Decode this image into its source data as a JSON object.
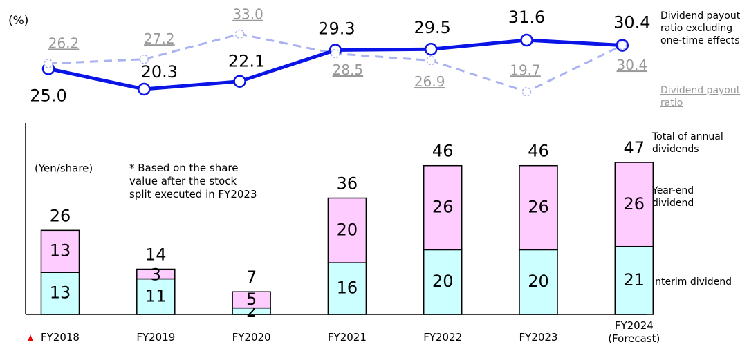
{
  "chart_data": {
    "type": "bar-line-combo",
    "line_unit": "(%)",
    "bar_unit": "(Yen/share)",
    "note": "* Based on the share value after the stock split executed in FY2023",
    "categories": [
      "FY2018",
      "FY2019",
      "FY2020",
      "FY2021",
      "FY2022",
      "FY2023",
      "FY2024 (Forecast)"
    ],
    "lines": [
      {
        "name": "Dividend payout ratio excluding one-time effects",
        "color": "#0a14e6",
        "dashed": false,
        "values": [
          25.0,
          20.3,
          22.1,
          29.3,
          29.5,
          31.6,
          30.4
        ],
        "value_labels": [
          "25.0",
          "20.3",
          "22.1",
          "29.3",
          "29.5",
          "31.6",
          "30.4"
        ]
      },
      {
        "name": "Dividend payout ratio",
        "color": "#aab2f2",
        "dashed": true,
        "values": [
          26.2,
          27.2,
          33.0,
          28.5,
          26.9,
          19.7,
          30.4
        ],
        "value_labels": [
          "26.2",
          "27.2",
          "33.0",
          "28.5",
          "26.9",
          "19.7",
          "30.4"
        ]
      }
    ],
    "bars": [
      {
        "name": "Interim dividend",
        "color": "#ccffff",
        "values": [
          13,
          11,
          2,
          16,
          20,
          20,
          21
        ]
      },
      {
        "name": "Year-end dividend",
        "color": "#ffccff",
        "values": [
          13,
          3,
          5,
          20,
          26,
          26,
          26
        ]
      }
    ],
    "totals": {
      "name": "Total of annual dividends",
      "values": [
        26,
        14,
        7,
        36,
        46,
        46,
        47
      ]
    }
  }
}
